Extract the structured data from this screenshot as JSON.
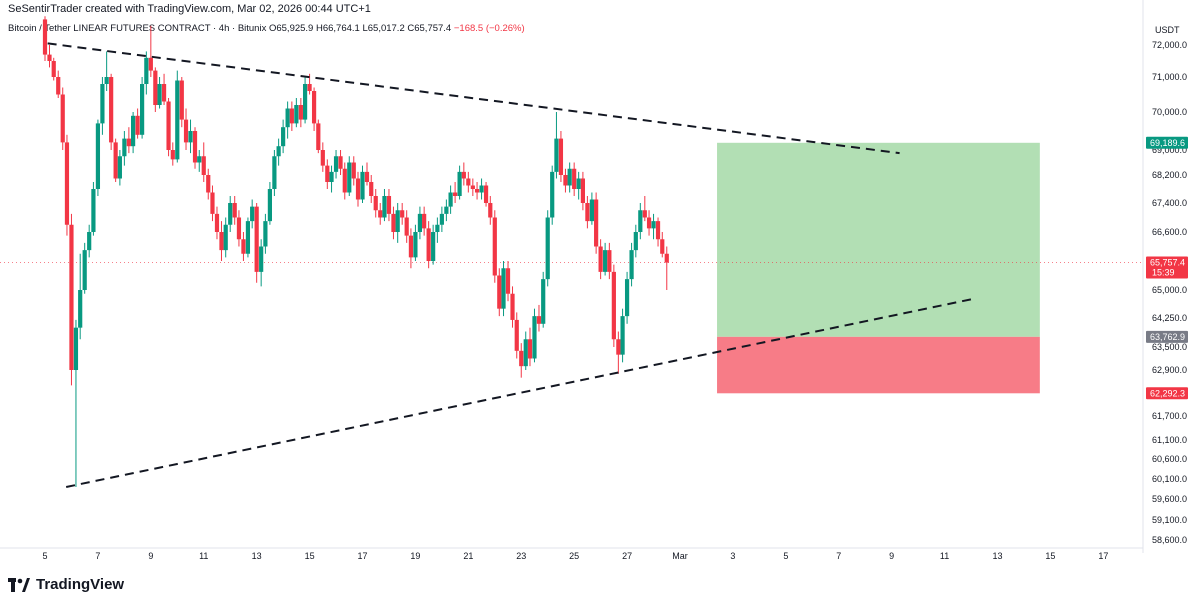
{
  "header": {
    "created_by": "SeSentirTrader created with TradingView.com, Mar 02, 2026 00:44 UTC+1"
  },
  "symbol_bar": {
    "symbol": "Bitcoin / Tether LINEAR FUTURES CONTRACT · 4h · Bitunix",
    "open": "O65,925.9",
    "high": "H66,764.1",
    "low": "L65,017.2",
    "close": "C65,757.4",
    "change": "−168.5 (−0.26%)"
  },
  "footer": {
    "brand": "TradingView"
  },
  "colors": {
    "up": "#089981",
    "down": "#f23645",
    "profit_zone": "#b2dfb4",
    "loss_zone": "#f77c87",
    "tp_tag": "#089981",
    "entry_tag": "#787b86",
    "sl_tag": "#f23645",
    "last_tag": "#f23645"
  },
  "chart_data": {
    "type": "candlestick",
    "currency": "USDT",
    "ylim": [
      58300,
      72700
    ],
    "y_ticks": [
      "72,000.0",
      "71,000.0",
      "70,000.0",
      "69,000.0",
      "68,200.0",
      "67,400.0",
      "66,600.0",
      "65,000.0",
      "64,250.0",
      "63,500.0",
      "62,900.0",
      "61,700.0",
      "61,100.0",
      "60,600.0",
      "60,100.0",
      "59,600.0",
      "59,100.0",
      "58,600.0"
    ],
    "y_tick_values": [
      72000,
      71000,
      70000,
      69000,
      68200,
      67400,
      66600,
      65000,
      64250,
      63500,
      62900,
      61700,
      61100,
      60600,
      60100,
      59600,
      59100,
      58600
    ],
    "x_ticks": [
      "5",
      "7",
      "9",
      "11",
      "13",
      "15",
      "17",
      "19",
      "21",
      "23",
      "25",
      "27",
      "Mar",
      "3",
      "5",
      "7",
      "9",
      "11",
      "13",
      "15",
      "17"
    ],
    "x_tick_days": [
      5,
      7,
      9,
      11,
      13,
      15,
      17,
      19,
      21,
      23,
      25,
      27,
      29,
      31,
      33,
      35,
      37,
      39,
      41,
      43,
      45
    ],
    "last_price": {
      "label": "65,757.4",
      "countdown": "15:39",
      "value": 65757.4
    },
    "position": {
      "take_profit": {
        "label": "69,189.6",
        "value": 69189.6
      },
      "entry": {
        "label": "63,762.9",
        "value": 63762.9
      },
      "stop_loss": {
        "label": "62,292.3",
        "value": 62292.3
      },
      "start_day": 30.4,
      "end_day": 42.6
    },
    "trendlines": [
      {
        "from": [
          5.1,
          72050
        ],
        "to": [
          37.3,
          68900
        ]
      },
      {
        "from": [
          5.8,
          59900
        ],
        "to": [
          40.0,
          64750
        ]
      }
    ],
    "candles": [
      [
        5.0,
        72800,
        72900,
        71500,
        71700
      ],
      [
        5.17,
        71700,
        72000,
        71300,
        71500
      ],
      [
        5.33,
        71500,
        71600,
        70900,
        71000
      ],
      [
        5.5,
        71000,
        71200,
        70400,
        70500
      ],
      [
        5.67,
        70500,
        70700,
        69000,
        69200
      ],
      [
        5.83,
        69200,
        69400,
        66500,
        66800
      ],
      [
        6.0,
        66800,
        67100,
        62500,
        62900
      ],
      [
        6.17,
        62900,
        64200,
        59900,
        64000
      ],
      [
        6.33,
        64000,
        66000,
        63700,
        65000
      ],
      [
        6.5,
        65000,
        66300,
        64900,
        66100
      ],
      [
        6.67,
        66100,
        66800,
        65900,
        66600
      ],
      [
        6.83,
        66600,
        68000,
        66500,
        67800
      ],
      [
        7.0,
        67800,
        69800,
        67600,
        69700
      ],
      [
        7.17,
        69700,
        71000,
        69400,
        70800
      ],
      [
        7.33,
        70800,
        71800,
        70600,
        71000
      ],
      [
        7.5,
        71000,
        71100,
        69000,
        69200
      ],
      [
        7.67,
        69200,
        69300,
        68000,
        68100
      ],
      [
        7.83,
        68100,
        69000,
        67900,
        68800
      ],
      [
        8.0,
        68800,
        69500,
        68500,
        69300
      ],
      [
        8.17,
        69300,
        69600,
        68900,
        69100
      ],
      [
        8.33,
        69100,
        70000,
        68900,
        69900
      ],
      [
        8.5,
        69900,
        70100,
        69300,
        69400
      ],
      [
        8.67,
        69400,
        71000,
        69300,
        70800
      ],
      [
        8.83,
        70800,
        71800,
        70500,
        71600
      ],
      [
        9.0,
        71600,
        72600,
        71000,
        71200
      ],
      [
        9.17,
        71200,
        71300,
        70000,
        70200
      ],
      [
        9.33,
        70200,
        71000,
        70100,
        70800
      ],
      [
        9.5,
        70800,
        71100,
        70200,
        70300
      ],
      [
        9.67,
        70300,
        70400,
        68800,
        69000
      ],
      [
        9.83,
        69000,
        69200,
        68500,
        68700
      ],
      [
        10.0,
        68700,
        71200,
        68600,
        70900
      ],
      [
        10.17,
        70900,
        71000,
        69600,
        69800
      ],
      [
        10.33,
        69800,
        70100,
        69000,
        69200
      ],
      [
        10.5,
        69200,
        69800,
        68900,
        69500
      ],
      [
        10.67,
        69500,
        69600,
        68400,
        68600
      ],
      [
        10.83,
        68600,
        69000,
        68300,
        68800
      ],
      [
        11.0,
        68800,
        69200,
        68000,
        68200
      ],
      [
        11.17,
        68200,
        68400,
        67500,
        67700
      ],
      [
        11.33,
        67700,
        67900,
        66900,
        67100
      ],
      [
        11.5,
        67100,
        67300,
        66400,
        66600
      ],
      [
        11.67,
        66600,
        66900,
        65800,
        66100
      ],
      [
        11.83,
        66100,
        67000,
        65900,
        66800
      ],
      [
        12.0,
        66800,
        67600,
        66600,
        67400
      ],
      [
        12.17,
        67400,
        67600,
        66800,
        67000
      ],
      [
        12.33,
        67000,
        67200,
        66200,
        66400
      ],
      [
        12.5,
        66400,
        66600,
        65800,
        66000
      ],
      [
        12.67,
        66000,
        67000,
        65900,
        66900
      ],
      [
        12.83,
        66900,
        67500,
        66700,
        67300
      ],
      [
        13.0,
        67300,
        67400,
        65200,
        65500
      ],
      [
        13.17,
        65500,
        66400,
        65100,
        66200
      ],
      [
        13.33,
        66200,
        67100,
        66000,
        66900
      ],
      [
        13.5,
        66900,
        68000,
        66800,
        67800
      ],
      [
        13.67,
        67800,
        69000,
        67600,
        68800
      ],
      [
        13.83,
        68800,
        69300,
        68500,
        69100
      ],
      [
        14.0,
        69100,
        69800,
        68900,
        69600
      ],
      [
        14.17,
        69600,
        70300,
        69300,
        70100
      ],
      [
        14.33,
        70100,
        70300,
        69500,
        69700
      ],
      [
        14.5,
        69700,
        70400,
        69600,
        70200
      ],
      [
        14.67,
        70200,
        70400,
        69600,
        69800
      ],
      [
        14.83,
        69800,
        71000,
        69700,
        70800
      ],
      [
        15.0,
        70800,
        71100,
        70500,
        70600
      ],
      [
        15.17,
        70600,
        70700,
        69500,
        69700
      ],
      [
        15.33,
        69700,
        69800,
        68900,
        69000
      ],
      [
        15.5,
        69000,
        69200,
        68300,
        68500
      ],
      [
        15.67,
        68500,
        68700,
        67800,
        68000
      ],
      [
        15.83,
        68000,
        68500,
        67700,
        68300
      ],
      [
        16.0,
        68300,
        69000,
        68100,
        68800
      ],
      [
        16.17,
        68800,
        69000,
        68200,
        68400
      ],
      [
        16.33,
        68400,
        68600,
        67500,
        67700
      ],
      [
        16.5,
        67700,
        68800,
        67600,
        68600
      ],
      [
        16.67,
        68600,
        68800,
        67900,
        68100
      ],
      [
        16.83,
        68100,
        68300,
        67300,
        67500
      ],
      [
        17.0,
        67500,
        68500,
        67400,
        68300
      ],
      [
        17.17,
        68300,
        68600,
        67900,
        68000
      ],
      [
        17.33,
        68000,
        68200,
        67400,
        67600
      ],
      [
        17.5,
        67600,
        67800,
        67000,
        67200
      ],
      [
        17.67,
        67200,
        67400,
        66800,
        67000
      ],
      [
        17.83,
        67000,
        67800,
        66900,
        67600
      ],
      [
        18.0,
        67600,
        67800,
        66900,
        67100
      ],
      [
        18.17,
        67100,
        67300,
        66400,
        66600
      ],
      [
        18.33,
        66600,
        67400,
        66300,
        67200
      ],
      [
        18.5,
        67200,
        67400,
        66800,
        67000
      ],
      [
        18.67,
        67000,
        67200,
        66300,
        66500
      ],
      [
        18.83,
        66500,
        66700,
        65600,
        65900
      ],
      [
        19.0,
        65900,
        66800,
        65800,
        66600
      ],
      [
        19.17,
        66600,
        67300,
        66400,
        67100
      ],
      [
        19.33,
        67100,
        67300,
        66500,
        66700
      ],
      [
        19.5,
        66700,
        66900,
        65600,
        65800
      ],
      [
        19.67,
        65800,
        66800,
        65700,
        66600
      ],
      [
        19.83,
        66600,
        67000,
        66300,
        66800
      ],
      [
        20.0,
        66800,
        67300,
        66600,
        67100
      ],
      [
        20.17,
        67100,
        67500,
        66900,
        67300
      ],
      [
        20.33,
        67300,
        67900,
        67100,
        67700
      ],
      [
        20.5,
        67700,
        68000,
        67400,
        67600
      ],
      [
        20.67,
        67600,
        68500,
        67500,
        68300
      ],
      [
        20.83,
        68300,
        68600,
        67900,
        68100
      ],
      [
        21.0,
        68100,
        68300,
        67700,
        67900
      ],
      [
        21.17,
        67900,
        68100,
        67600,
        67800
      ],
      [
        21.33,
        67800,
        68000,
        67500,
        67700
      ],
      [
        21.5,
        67700,
        68100,
        67500,
        67900
      ],
      [
        21.67,
        67900,
        68000,
        67300,
        67400
      ],
      [
        21.83,
        67400,
        67600,
        66800,
        67000
      ],
      [
        22.0,
        67000,
        67200,
        65200,
        65400
      ],
      [
        22.17,
        65400,
        65600,
        64300,
        64500
      ],
      [
        22.33,
        64500,
        65800,
        64300,
        65600
      ],
      [
        22.5,
        65600,
        65800,
        64700,
        64900
      ],
      [
        22.67,
        64900,
        65100,
        64000,
        64200
      ],
      [
        22.83,
        64200,
        64400,
        63200,
        63400
      ],
      [
        23.0,
        63400,
        63600,
        62700,
        63000
      ],
      [
        23.17,
        63000,
        63900,
        62900,
        63700
      ],
      [
        23.33,
        63700,
        64000,
        63000,
        63200
      ],
      [
        23.5,
        63200,
        64500,
        63100,
        64300
      ],
      [
        23.67,
        64300,
        64600,
        63900,
        64100
      ],
      [
        23.83,
        64100,
        65500,
        64000,
        65300
      ],
      [
        24.0,
        65300,
        67200,
        65100,
        67000
      ],
      [
        24.17,
        67000,
        68500,
        66800,
        68300
      ],
      [
        24.33,
        68300,
        70000,
        68100,
        69300
      ],
      [
        24.5,
        69300,
        69500,
        68000,
        68200
      ],
      [
        24.67,
        68200,
        68400,
        67700,
        67900
      ],
      [
        24.83,
        67900,
        68600,
        67700,
        68400
      ],
      [
        25.0,
        68400,
        68600,
        67600,
        67800
      ],
      [
        25.17,
        67800,
        68300,
        67500,
        68100
      ],
      [
        25.33,
        68100,
        68300,
        67200,
        67400
      ],
      [
        25.5,
        67400,
        67600,
        66700,
        66900
      ],
      [
        25.67,
        66900,
        67700,
        66800,
        67500
      ],
      [
        25.83,
        67500,
        67700,
        66000,
        66200
      ],
      [
        26.0,
        66200,
        66400,
        65300,
        65500
      ],
      [
        26.17,
        65500,
        66300,
        65400,
        66100
      ],
      [
        26.33,
        66100,
        66300,
        65300,
        65500
      ],
      [
        26.5,
        65500,
        65700,
        63500,
        63700
      ],
      [
        26.67,
        63700,
        63900,
        62800,
        63300
      ],
      [
        26.83,
        63300,
        64500,
        63100,
        64300
      ],
      [
        27.0,
        64300,
        65500,
        64100,
        65300
      ],
      [
        27.17,
        65300,
        66300,
        65100,
        66100
      ],
      [
        27.33,
        66100,
        66800,
        65900,
        66600
      ],
      [
        27.5,
        66600,
        67400,
        66400,
        67200
      ],
      [
        27.67,
        67200,
        67600,
        66900,
        67000
      ],
      [
        27.83,
        67000,
        67200,
        66500,
        66700
      ],
      [
        28.0,
        66700,
        67100,
        66400,
        66900
      ],
      [
        28.17,
        66900,
        67000,
        66200,
        66400
      ],
      [
        28.33,
        66400,
        66600,
        65900,
        66000
      ],
      [
        28.5,
        66000,
        66200,
        65000,
        65757
      ]
    ]
  }
}
